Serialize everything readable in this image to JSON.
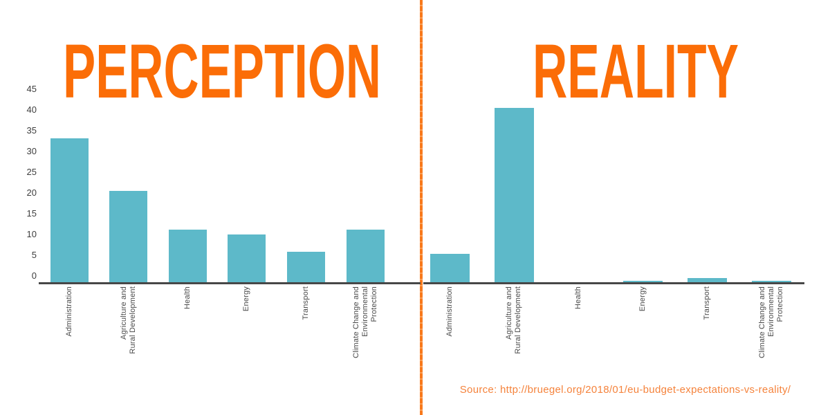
{
  "colors": {
    "bar": "#5db9c9",
    "title": "#fb6d07",
    "divider": "#f8791c",
    "divider_dash": "#fa9e55",
    "axis": "#474747",
    "tick_label": "#3d3d3d",
    "category_label": "#4a4a4a",
    "source_text": "#f5833c"
  },
  "source": {
    "label": "Source: http://bruegel.org/2018/01/eu-budget-expectations-vs-reality/"
  },
  "category_label_lines": [
    [
      "Administration"
    ],
    [
      "Agriculture and",
      "Rural Development"
    ],
    [
      "Health"
    ],
    [
      "Energy"
    ],
    [
      "Transport"
    ],
    [
      "Climate Change and",
      "Environmental",
      "Protection"
    ]
  ],
  "chart_data": [
    {
      "type": "bar",
      "title": "PERCEPTION",
      "categories": [
        "Administration",
        "Agriculture and Rural Development",
        "Health",
        "Energy",
        "Transport",
        "Climate Change and Environmental Protection"
      ],
      "values": [
        33,
        21,
        12,
        11,
        7,
        12
      ],
      "xlabel": "",
      "ylabel": "",
      "ylim": [
        0,
        45
      ],
      "yticks": [
        0,
        5,
        10,
        15,
        20,
        25,
        30,
        35,
        40,
        45
      ],
      "y_axis_labels_visible": true,
      "grid": false,
      "legend": false
    },
    {
      "type": "bar",
      "title": "REALITY",
      "categories": [
        "Administration",
        "Agriculture and Rural Development",
        "Health",
        "Energy",
        "Transport",
        "Climate Change and Environmental Protection"
      ],
      "values": [
        6.5,
        40,
        0,
        0.3,
        1,
        0.3
      ],
      "xlabel": "",
      "ylabel": "",
      "ylim": [
        0,
        45
      ],
      "yticks": [
        0,
        5,
        10,
        15,
        20,
        25,
        30,
        35,
        40,
        45
      ],
      "y_axis_labels_visible": false,
      "grid": false,
      "legend": false
    }
  ]
}
